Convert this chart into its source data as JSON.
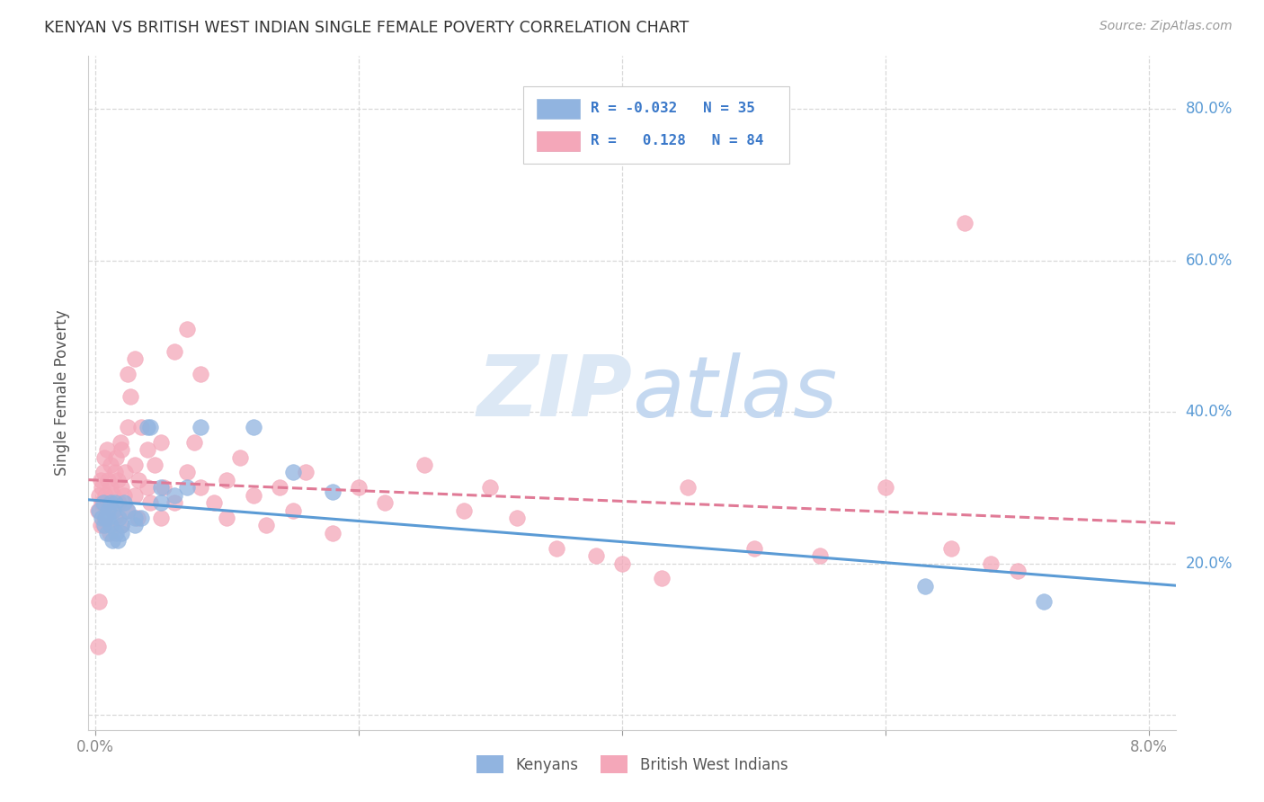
{
  "title": "KENYAN VS BRITISH WEST INDIAN SINGLE FEMALE POVERTY CORRELATION CHART",
  "source": "Source: ZipAtlas.com",
  "ylabel": "Single Female Poverty",
  "ytick_labels": [
    "20.0%",
    "40.0%",
    "60.0%",
    "80.0%"
  ],
  "ytick_values": [
    0.2,
    0.4,
    0.6,
    0.8
  ],
  "xlim": [
    -0.0005,
    0.082
  ],
  "ylim": [
    -0.02,
    0.87
  ],
  "kenyan_color": "#91b4e0",
  "bwi_color": "#f4a7b9",
  "kenyan_R": -0.032,
  "bwi_R": 0.128,
  "background_color": "#ffffff",
  "grid_color": "#d8d8d8",
  "watermark_color": "#dce8f5",
  "trend_blue": "#5b9bd5",
  "trend_pink": "#e07a96",
  "kenyan_points_x": [
    0.0003,
    0.0005,
    0.0006,
    0.0007,
    0.0008,
    0.0009,
    0.001,
    0.001,
    0.0012,
    0.0012,
    0.0013,
    0.0014,
    0.0015,
    0.0016,
    0.0017,
    0.0018,
    0.002,
    0.002,
    0.0022,
    0.0025,
    0.003,
    0.003,
    0.0035,
    0.004,
    0.0042,
    0.005,
    0.005,
    0.006,
    0.007,
    0.008,
    0.012,
    0.015,
    0.018,
    0.063,
    0.072
  ],
  "kenyan_points_y": [
    0.27,
    0.26,
    0.28,
    0.25,
    0.26,
    0.24,
    0.27,
    0.26,
    0.25,
    0.28,
    0.23,
    0.27,
    0.28,
    0.24,
    0.23,
    0.26,
    0.25,
    0.24,
    0.28,
    0.27,
    0.26,
    0.25,
    0.26,
    0.38,
    0.38,
    0.3,
    0.28,
    0.29,
    0.3,
    0.38,
    0.38,
    0.32,
    0.295,
    0.17,
    0.15
  ],
  "bwi_points_x": [
    0.0002,
    0.0003,
    0.0004,
    0.0005,
    0.0005,
    0.0006,
    0.0006,
    0.0007,
    0.0008,
    0.0008,
    0.0009,
    0.001,
    0.001,
    0.0011,
    0.0012,
    0.0012,
    0.0013,
    0.0014,
    0.0015,
    0.0015,
    0.0016,
    0.0017,
    0.0018,
    0.0019,
    0.002,
    0.002,
    0.002,
    0.0022,
    0.0023,
    0.0024,
    0.0025,
    0.0025,
    0.0027,
    0.003,
    0.003,
    0.003,
    0.0032,
    0.0033,
    0.0035,
    0.004,
    0.004,
    0.0042,
    0.0045,
    0.005,
    0.005,
    0.0052,
    0.006,
    0.006,
    0.007,
    0.007,
    0.0075,
    0.008,
    0.008,
    0.009,
    0.01,
    0.01,
    0.011,
    0.012,
    0.013,
    0.014,
    0.015,
    0.016,
    0.018,
    0.02,
    0.022,
    0.025,
    0.028,
    0.03,
    0.032,
    0.035,
    0.038,
    0.04,
    0.043,
    0.045,
    0.05,
    0.055,
    0.06,
    0.065,
    0.068,
    0.07,
    0.0004,
    0.0003,
    0.0002,
    0.066
  ],
  "bwi_points_y": [
    0.27,
    0.29,
    0.31,
    0.28,
    0.3,
    0.32,
    0.25,
    0.34,
    0.26,
    0.29,
    0.35,
    0.28,
    0.31,
    0.24,
    0.3,
    0.33,
    0.27,
    0.29,
    0.32,
    0.26,
    0.34,
    0.31,
    0.28,
    0.36,
    0.25,
    0.3,
    0.35,
    0.29,
    0.32,
    0.27,
    0.45,
    0.38,
    0.42,
    0.29,
    0.33,
    0.47,
    0.26,
    0.31,
    0.38,
    0.3,
    0.35,
    0.28,
    0.33,
    0.36,
    0.26,
    0.3,
    0.48,
    0.28,
    0.51,
    0.32,
    0.36,
    0.3,
    0.45,
    0.28,
    0.31,
    0.26,
    0.34,
    0.29,
    0.25,
    0.3,
    0.27,
    0.32,
    0.24,
    0.3,
    0.28,
    0.33,
    0.27,
    0.3,
    0.26,
    0.22,
    0.21,
    0.2,
    0.18,
    0.3,
    0.22,
    0.21,
    0.3,
    0.22,
    0.2,
    0.19,
    0.25,
    0.15,
    0.09,
    0.65
  ]
}
